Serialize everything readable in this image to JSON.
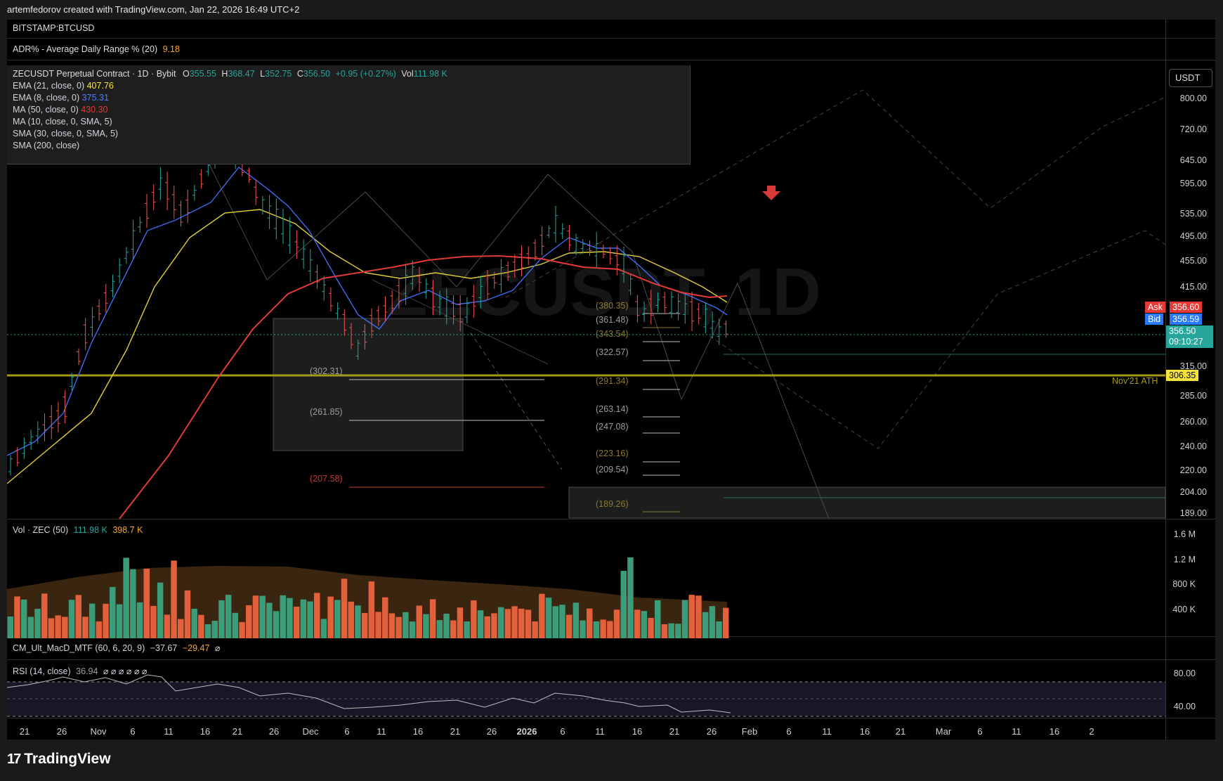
{
  "header": {
    "credit": "artemfedorov created with TradingView.com, Jan 22, 2026 16:49 UTC+2"
  },
  "chart": {
    "compare_symbol": "BITSTAMP:BTCUSD",
    "adr": {
      "label": "ADR% - Average Daily Range % (20)",
      "value": "9.18"
    },
    "main": {
      "title": "ZECUSDT Perpetual Contract · 1D · Bybit",
      "watermark": "ZECUSDT, 1D",
      "ohlc": {
        "o_label": "O",
        "o": "355.55",
        "h_label": "H",
        "h": "368.47",
        "l_label": "L",
        "l": "352.75",
        "c_label": "C",
        "c": "356.50",
        "change": "+0.95 (+0.27%)",
        "vol_label": "Vol",
        "vol": "111.98 K"
      },
      "indicators": [
        {
          "label": "EMA (21, close, 0)",
          "value": "407.76",
          "color": "#f5e33b"
        },
        {
          "label": "EMA (8, close, 0)",
          "value": "375.31",
          "color": "#3b6ff5"
        },
        {
          "label": "MA (50, close, 0)",
          "value": "430.30",
          "color": "#e53935"
        },
        {
          "label": "MA (10, close, 0, SMA, 5)",
          "value": "",
          "color": ""
        },
        {
          "label": "SMA (30, close, 0, SMA, 5)",
          "value": "",
          "color": ""
        },
        {
          "label": "SMA (200, close)",
          "value": "",
          "color": ""
        }
      ]
    },
    "currency_button": "USDT",
    "price_axis": [
      "800.00",
      "720.00",
      "645.00",
      "595.00",
      "535.00",
      "495.00",
      "455.00",
      "415.00",
      "315.00",
      "285.00",
      "260.00",
      "240.00",
      "220.00",
      "204.00",
      "189.00"
    ],
    "price_tags": {
      "ask_label": "Ask",
      "ask": "356.60",
      "bid_label": "Bid",
      "bid": "356.59",
      "last": "356.50",
      "countdown": "09:10:27",
      "ath_value": "306.35"
    },
    "ath_label": "Nov'21 ATH",
    "fib_left": [
      "(302.31)",
      "(261.85)",
      "(207.58)"
    ],
    "fib_right": [
      "(380.35)",
      "(361.48)",
      "(343.54)",
      "(322.57)",
      "(291.34)",
      "(263.14)",
      "(247.08)",
      "(223.16)",
      "(209.54)",
      "(189.26)"
    ],
    "volume": {
      "label": "Vol · ZEC (50)",
      "value1": "111.98 K",
      "value2": "398.7 K",
      "axis": [
        "1.6 M",
        "1.2 M",
        "800 K",
        "400 K"
      ]
    },
    "macd": {
      "label": "CM_Ult_MacD_MTF (60, 6, 20, 9)",
      "value1": "−37.67",
      "value2": "−29.47",
      "value3": "⌀"
    },
    "rsi": {
      "label": "RSI (14, close)",
      "value": "36.94",
      "marks": "⌀ ⌀ ⌀ ⌀ ⌀ ⌀",
      "axis": [
        "80.00",
        "40.00"
      ]
    },
    "time_axis": [
      "21",
      "26",
      "Nov",
      "6",
      "11",
      "16",
      "21",
      "26",
      "Dec",
      "6",
      "11",
      "16",
      "21",
      "26",
      "2026",
      "6",
      "11",
      "16",
      "21",
      "26",
      "Feb",
      "6",
      "11",
      "16",
      "21",
      "Mar",
      "6",
      "11",
      "16",
      "2"
    ]
  },
  "footer": {
    "brand": "TradingView"
  },
  "colors": {
    "up": "#26a69a",
    "down": "#ef5350",
    "ema21": "#f5e33b",
    "ema8": "#3b6ff5",
    "ma50": "#e53935",
    "ath": "#a39a1c"
  }
}
